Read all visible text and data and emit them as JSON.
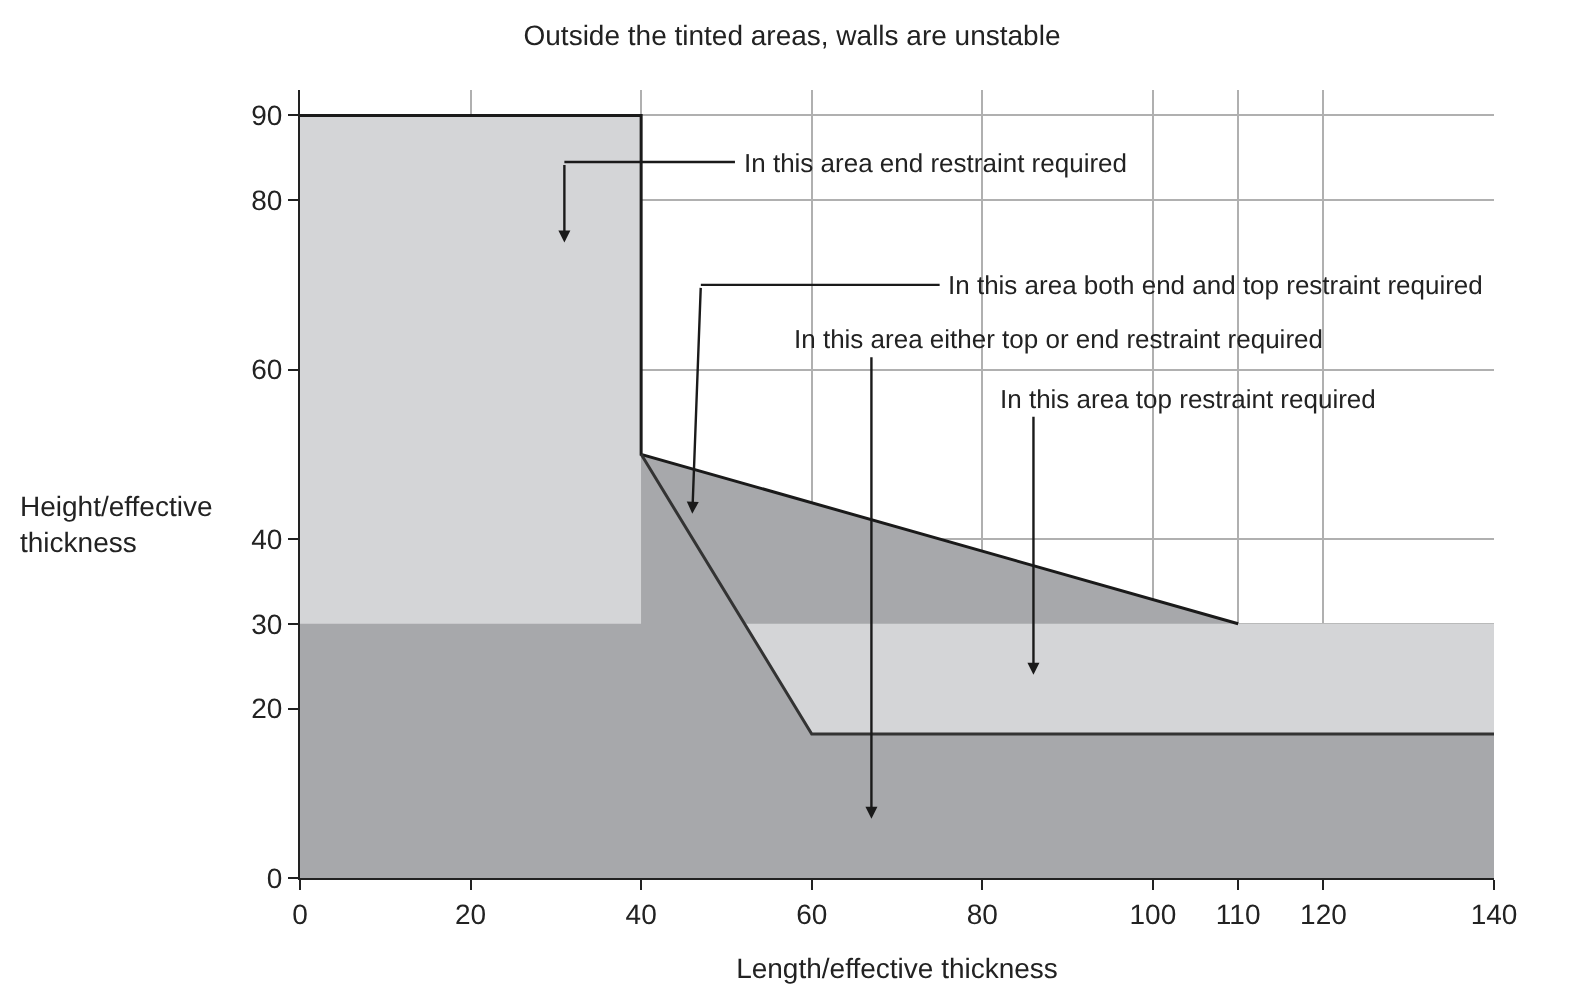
{
  "chart_data": {
    "type": "area",
    "title": "Outside the tinted areas, walls are unstable",
    "xlabel": "Length/effective thickness",
    "ylabel": "Height/effective thickness",
    "series": [
      {
        "color": "#d4d5d7",
        "x": [
          0,
          40
        ],
        "values": [
          90,
          90
        ]
      },
      {
        "color": "#a7a8ab",
        "x": [
          40,
          110
        ],
        "values": [
          50,
          30
        ]
      },
      {
        "color": "#d4d5d7",
        "x": [
          52,
          140
        ],
        "values": [
          30,
          30
        ]
      },
      {
        "color": "#a7a8ab",
        "x": [
          0,
          40,
          52,
          60,
          140
        ],
        "values": [
          30,
          30,
          30,
          17,
          17
        ]
      },
      {
        "type": "line",
        "color": "#1a1a1a",
        "x": [
          0,
          40,
          40,
          110
        ],
        "values": [
          90,
          90,
          50,
          30
        ]
      },
      {
        "type": "line",
        "color": "#333333",
        "x": [
          40,
          60,
          140
        ],
        "values": [
          50,
          17,
          17
        ]
      }
    ],
    "annotations": [
      "In this area end restraint required",
      "In this area both end and top restraint required",
      "In this area either top or end restraint required",
      "In this area top restraint required"
    ],
    "xlim": [
      0,
      140
    ],
    "ylim": [
      0,
      93
    ],
    "xticks": [
      0,
      20,
      40,
      60,
      80,
      100,
      110,
      120,
      140
    ],
    "yticks": [
      0,
      20,
      30,
      40,
      60,
      80,
      90
    ],
    "grid": true
  }
}
